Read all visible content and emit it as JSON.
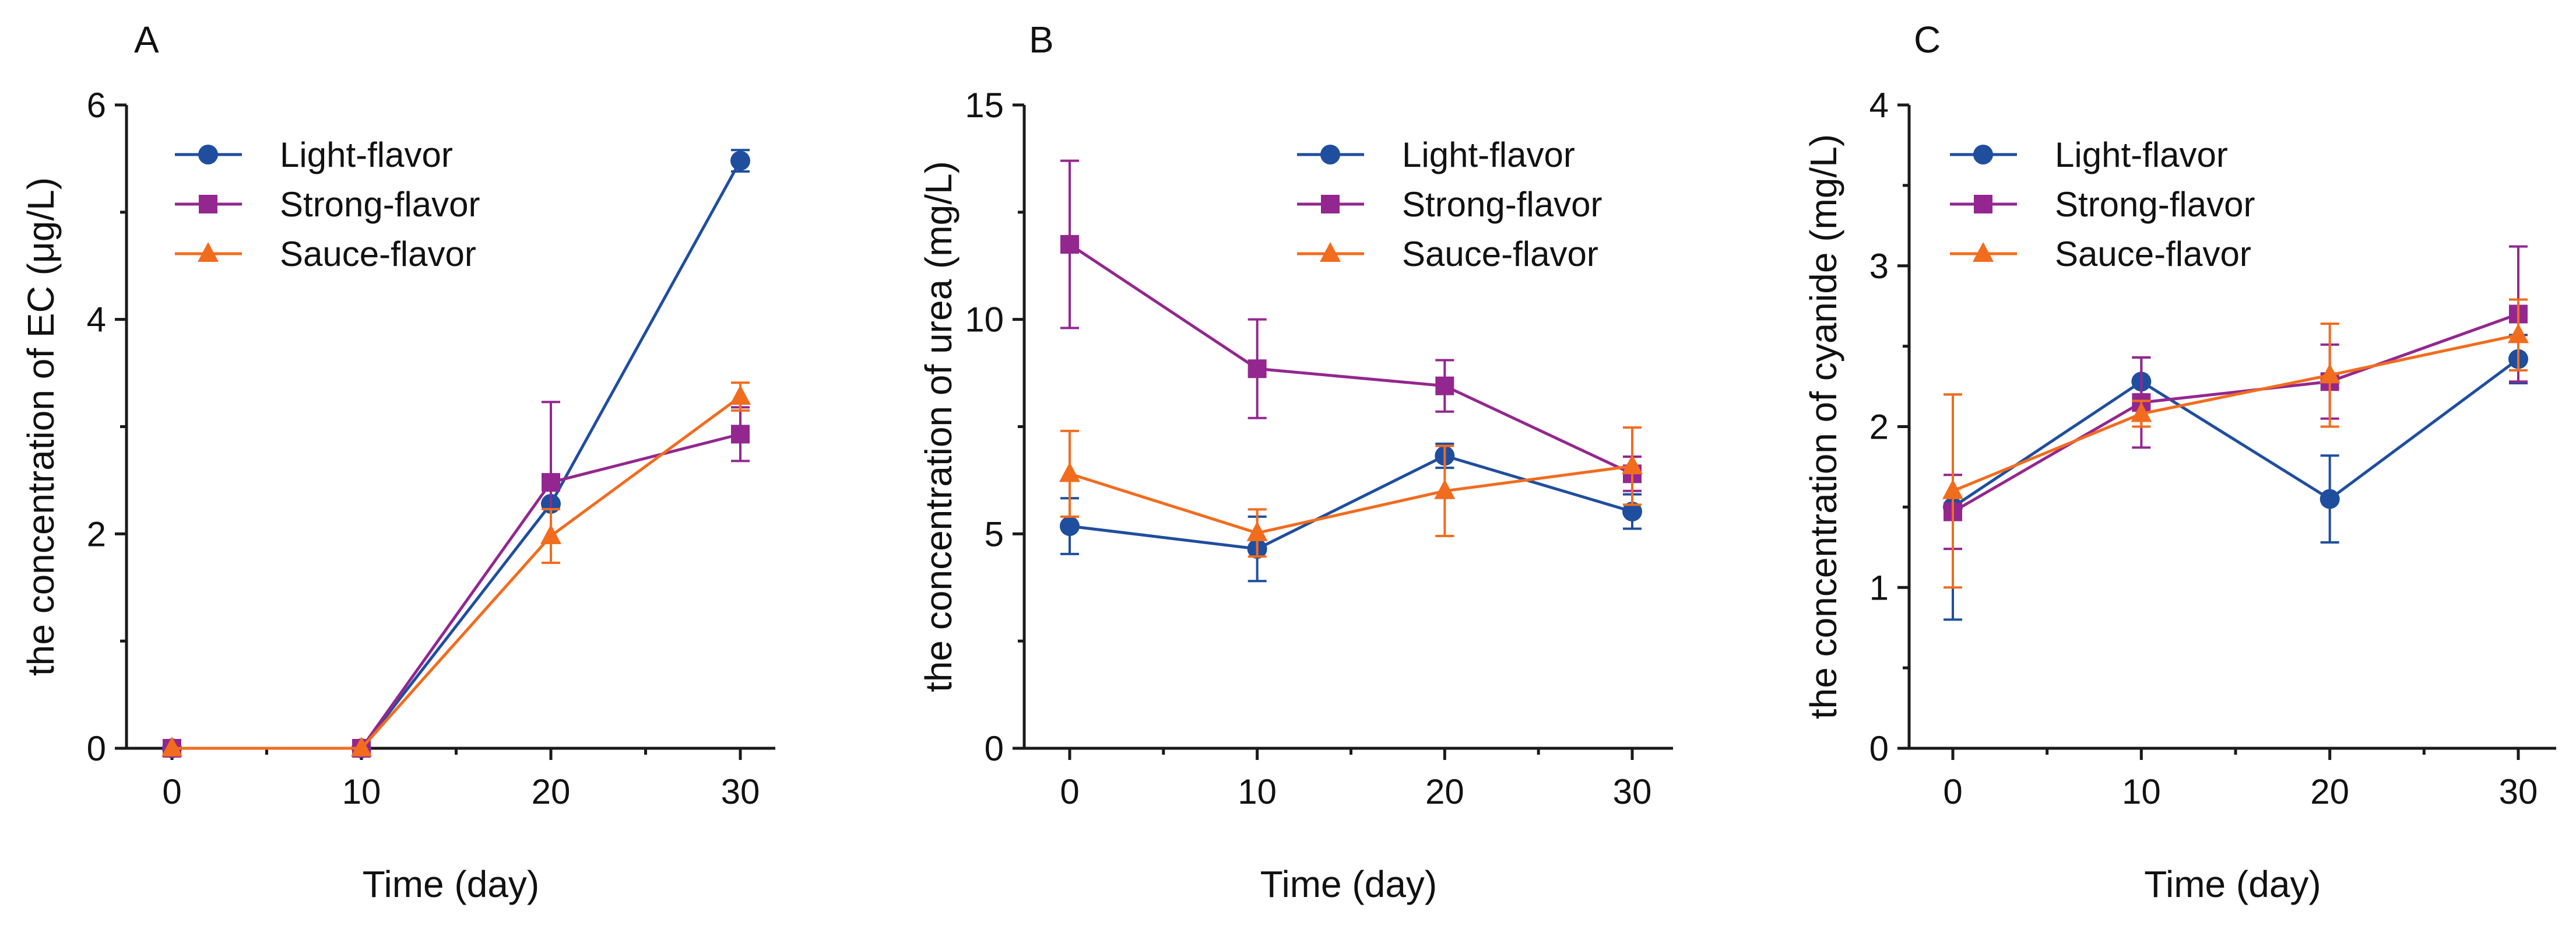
{
  "chart_data": [
    {
      "type": "line",
      "panel_label": "A",
      "xlabel": "Time (day)",
      "ylabel": "the concentration of EC (μg/L)",
      "x": [
        0,
        10,
        20,
        30
      ],
      "xticks": [
        "0",
        "10",
        "20",
        "30"
      ],
      "ylim": [
        0,
        6
      ],
      "yticks": [
        "0",
        "2",
        "4",
        "6"
      ],
      "legend_position": "top-left",
      "series": [
        {
          "name": "Light-flavor",
          "marker": "circle",
          "color": "#1f4e9f",
          "values": [
            0,
            0,
            2.28,
            5.48
          ],
          "errors": [
            0,
            0,
            0,
            0.1
          ]
        },
        {
          "name": "Strong-flavor",
          "marker": "square",
          "color": "#93278f",
          "values": [
            0,
            0,
            2.48,
            2.93
          ],
          "errors": [
            0,
            0,
            0.75,
            0.25
          ]
        },
        {
          "name": "Sauce-flavor",
          "marker": "triangle",
          "color": "#f26c1e",
          "values": [
            0,
            0,
            1.98,
            3.28
          ],
          "errors": [
            0,
            0,
            0.25,
            0.13
          ]
        }
      ]
    },
    {
      "type": "line",
      "panel_label": "B",
      "xlabel": "Time (day)",
      "ylabel": "the concentration of urea (mg/L)",
      "x": [
        0,
        10,
        20,
        30
      ],
      "xticks": [
        "0",
        "10",
        "20",
        "30"
      ],
      "ylim": [
        0,
        15
      ],
      "yticks": [
        "0",
        "5",
        "10",
        "15"
      ],
      "legend_position": "top-right",
      "series": [
        {
          "name": "Light-flavor",
          "marker": "circle",
          "color": "#1f4e9f",
          "values": [
            5.18,
            4.65,
            6.82,
            5.52
          ],
          "errors": [
            0.65,
            0.75,
            0.28,
            0.4
          ]
        },
        {
          "name": "Strong-flavor",
          "marker": "square",
          "color": "#93278f",
          "values": [
            11.75,
            8.85,
            8.45,
            6.4
          ],
          "errors": [
            1.95,
            1.15,
            0.6,
            0.4
          ]
        },
        {
          "name": "Sauce-flavor",
          "marker": "triangle",
          "color": "#f26c1e",
          "values": [
            6.4,
            5.02,
            6.0,
            6.58
          ],
          "errors": [
            1.0,
            0.55,
            1.05,
            0.9
          ]
        }
      ]
    },
    {
      "type": "line",
      "panel_label": "C",
      "xlabel": "Time (day)",
      "ylabel": "the concentration of cyanide (mg/L)",
      "x": [
        0,
        10,
        20,
        30
      ],
      "xticks": [
        "0",
        "10",
        "20",
        "30"
      ],
      "ylim": [
        0,
        4
      ],
      "yticks": [
        "0",
        "1",
        "2",
        "3",
        "4"
      ],
      "legend_position": "top-left",
      "series": [
        {
          "name": "Light-flavor",
          "marker": "circle",
          "color": "#1f4e9f",
          "values": [
            1.5,
            2.28,
            1.55,
            2.42
          ],
          "errors": [
            0.7,
            0.15,
            0.27,
            0.15
          ]
        },
        {
          "name": "Strong-flavor",
          "marker": "square",
          "color": "#93278f",
          "values": [
            1.47,
            2.15,
            2.28,
            2.7
          ],
          "errors": [
            0.23,
            0.28,
            0.23,
            0.42
          ]
        },
        {
          "name": "Sauce-flavor",
          "marker": "triangle",
          "color": "#f26c1e",
          "values": [
            1.6,
            2.08,
            2.32,
            2.57
          ],
          "errors": [
            0.6,
            0.08,
            0.32,
            0.22
          ]
        }
      ]
    }
  ]
}
